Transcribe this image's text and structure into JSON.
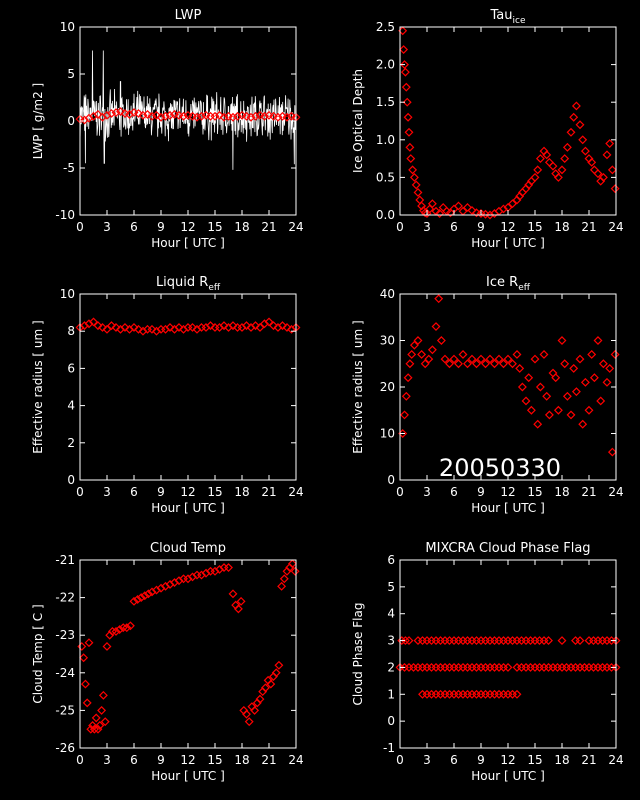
{
  "date_stamp": "20050330",
  "colors": {
    "background": "#000000",
    "axes": "#ffffff",
    "data": "#ff0000",
    "lwp_trace": "#ffffff"
  },
  "chart_data": [
    {
      "id": "lwp",
      "type": "line",
      "title": "LWP",
      "title_sub": "",
      "xlabel": "Hour [ UTC ]",
      "ylabel": "LWP [ g/m2 ]",
      "xlim": [
        0,
        24
      ],
      "ylim": [
        -10,
        10
      ],
      "xticks": [
        0,
        3,
        6,
        9,
        12,
        15,
        18,
        21,
        24
      ],
      "yticks": [
        -10,
        -5,
        0,
        5,
        10
      ],
      "series": [
        {
          "style": "noise-line",
          "color": "#ffffff",
          "x_range": [
            0,
            24
          ],
          "center": 0.5,
          "amplitude": 2.5,
          "spikes": [
            [
              1.4,
              7.5
            ],
            [
              2.6,
              7.5
            ],
            [
              2.7,
              -4.5
            ],
            [
              17.0,
              -5.2
            ],
            [
              23.8,
              -4.6
            ],
            [
              0.6,
              -4.5
            ],
            [
              4.5,
              4.2
            ]
          ]
        },
        {
          "style": "diamond",
          "color": "#ff0000",
          "x": [
            0.0,
            0.5,
            1.0,
            1.5,
            2.0,
            2.5,
            3.0,
            3.5,
            4.0,
            4.5,
            5.0,
            5.5,
            6.0,
            6.5,
            7.0,
            7.5,
            8.0,
            8.5,
            9.0,
            9.5,
            10.0,
            10.5,
            11.0,
            11.5,
            12.0,
            12.5,
            13.0,
            13.5,
            14.0,
            14.5,
            15.0,
            15.5,
            16.0,
            16.5,
            17.0,
            17.5,
            18.0,
            18.5,
            19.0,
            19.5,
            20.0,
            20.5,
            21.0,
            21.5,
            22.0,
            22.5,
            23.0,
            23.5,
            24.0
          ],
          "y": [
            0.2,
            0.1,
            0.3,
            0.5,
            0.7,
            0.4,
            0.6,
            0.8,
            0.9,
            1.0,
            0.8,
            0.7,
            0.9,
            0.8,
            0.6,
            0.7,
            0.5,
            0.6,
            0.4,
            0.5,
            0.6,
            0.7,
            0.6,
            0.5,
            0.6,
            0.5,
            0.4,
            0.5,
            0.6,
            0.5,
            0.5,
            0.6,
            0.4,
            0.5,
            0.4,
            0.5,
            0.6,
            0.5,
            0.4,
            0.5,
            0.6,
            0.5,
            0.6,
            0.5,
            0.4,
            0.5,
            0.4,
            0.5,
            0.4
          ]
        }
      ]
    },
    {
      "id": "tau_ice",
      "type": "scatter",
      "title": "Tau",
      "title_sub": "ice",
      "xlabel": "Hour [ UTC ]",
      "ylabel": "Ice Optical Depth",
      "xlim": [
        0,
        24
      ],
      "ylim": [
        0,
        2.5
      ],
      "xticks": [
        0,
        3,
        6,
        9,
        12,
        15,
        18,
        21,
        24
      ],
      "yticks": [
        0.0,
        0.5,
        1.0,
        1.5,
        2.0,
        2.5
      ],
      "ytick_labels": [
        "0.0",
        "0.5",
        "1.0",
        "1.5",
        "2.0",
        "2.5"
      ],
      "series": [
        {
          "style": "diamond",
          "color": "#ff0000",
          "x": [
            0.3,
            0.4,
            0.5,
            0.6,
            0.7,
            0.8,
            0.9,
            1.0,
            1.1,
            1.2,
            1.4,
            1.6,
            1.8,
            2.0,
            2.2,
            2.4,
            2.6,
            2.8,
            3.0,
            3.3,
            3.6,
            4.0,
            4.4,
            4.8,
            5.2,
            5.6,
            6.0,
            6.5,
            7.0,
            7.5,
            8.0,
            8.5,
            9.0,
            9.5,
            10.0,
            10.5,
            11.0,
            11.5,
            12.0,
            12.5,
            13.0,
            13.3,
            13.6,
            14.0,
            14.3,
            14.6,
            15.0,
            15.3,
            15.6,
            16.0,
            16.3,
            16.6,
            17.0,
            17.3,
            17.6,
            18.0,
            18.3,
            18.6,
            19.0,
            19.3,
            19.6,
            20.0,
            20.3,
            20.6,
            21.0,
            21.3,
            21.6,
            22.0,
            22.3,
            22.6,
            23.0,
            23.3,
            23.6,
            23.9
          ],
          "y": [
            2.45,
            2.2,
            2.0,
            1.9,
            1.7,
            1.5,
            1.3,
            1.1,
            0.9,
            0.75,
            0.6,
            0.5,
            0.4,
            0.3,
            0.2,
            0.12,
            0.06,
            0.03,
            0.02,
            0.08,
            0.15,
            0.05,
            0.02,
            0.1,
            0.05,
            0.03,
            0.08,
            0.12,
            0.05,
            0.1,
            0.06,
            0.03,
            0.02,
            0.01,
            0.0,
            0.02,
            0.05,
            0.08,
            0.1,
            0.15,
            0.2,
            0.25,
            0.3,
            0.35,
            0.4,
            0.45,
            0.5,
            0.6,
            0.75,
            0.85,
            0.8,
            0.7,
            0.65,
            0.55,
            0.5,
            0.6,
            0.75,
            0.9,
            1.1,
            1.3,
            1.45,
            1.2,
            1.0,
            0.85,
            0.75,
            0.7,
            0.6,
            0.55,
            0.45,
            0.5,
            0.8,
            0.95,
            0.6,
            0.35
          ]
        }
      ]
    },
    {
      "id": "liquid_reff",
      "type": "scatter",
      "title": "Liquid R",
      "title_sub": "eff",
      "xlabel": "Hour [ UTC ]",
      "ylabel": "Effective radius [ um ]",
      "xlim": [
        0,
        24
      ],
      "ylim": [
        0,
        10
      ],
      "xticks": [
        0,
        3,
        6,
        9,
        12,
        15,
        18,
        21,
        24
      ],
      "yticks": [
        0,
        2,
        4,
        6,
        8,
        10
      ],
      "series": [
        {
          "style": "diamond",
          "color": "#ff0000",
          "x": [
            0.0,
            0.5,
            1.0,
            1.5,
            2.0,
            2.5,
            3.0,
            3.5,
            4.0,
            4.5,
            5.0,
            5.5,
            6.0,
            6.5,
            7.0,
            7.5,
            8.0,
            8.5,
            9.0,
            9.5,
            10.0,
            10.5,
            11.0,
            11.5,
            12.0,
            12.5,
            13.0,
            13.5,
            14.0,
            14.5,
            15.0,
            15.5,
            16.0,
            16.5,
            17.0,
            17.5,
            18.0,
            18.5,
            19.0,
            19.5,
            20.0,
            20.5,
            21.0,
            21.5,
            22.0,
            22.5,
            23.0,
            23.5,
            24.0
          ],
          "y": [
            8.2,
            8.3,
            8.4,
            8.5,
            8.3,
            8.2,
            8.1,
            8.3,
            8.2,
            8.1,
            8.2,
            8.1,
            8.2,
            8.1,
            8.0,
            8.1,
            8.1,
            8.0,
            8.1,
            8.1,
            8.2,
            8.1,
            8.2,
            8.1,
            8.2,
            8.2,
            8.1,
            8.2,
            8.2,
            8.3,
            8.2,
            8.2,
            8.3,
            8.2,
            8.3,
            8.2,
            8.2,
            8.3,
            8.2,
            8.3,
            8.2,
            8.4,
            8.5,
            8.3,
            8.2,
            8.3,
            8.2,
            8.1,
            8.2
          ]
        }
      ]
    },
    {
      "id": "ice_reff",
      "type": "scatter",
      "title": "Ice R",
      "title_sub": "eff",
      "xlabel": "Hour [ UTC ]",
      "ylabel": "Effective radius [ um ]",
      "xlim": [
        0,
        24
      ],
      "ylim": [
        0,
        40
      ],
      "xticks": [
        0,
        3,
        6,
        9,
        12,
        15,
        18,
        21,
        24
      ],
      "yticks": [
        0,
        10,
        20,
        30,
        40
      ],
      "series": [
        {
          "style": "diamond",
          "color": "#ff0000",
          "x": [
            0.3,
            0.5,
            0.7,
            0.9,
            1.1,
            1.3,
            1.6,
            2.0,
            2.4,
            2.8,
            3.2,
            3.6,
            4.0,
            4.3,
            4.6,
            5.0,
            5.5,
            6.0,
            6.5,
            7.0,
            7.5,
            8.0,
            8.5,
            9.0,
            9.5,
            10.0,
            10.5,
            11.0,
            11.5,
            12.0,
            12.5,
            13.0,
            13.3,
            13.6,
            14.0,
            14.3,
            14.6,
            15.0,
            15.3,
            15.6,
            16.0,
            16.3,
            16.6,
            17.0,
            17.3,
            17.6,
            18.0,
            18.3,
            18.6,
            19.0,
            19.3,
            19.6,
            20.0,
            20.3,
            20.6,
            21.0,
            21.3,
            21.6,
            22.0,
            22.3,
            22.6,
            23.0,
            23.3,
            23.6,
            23.9
          ],
          "y": [
            10,
            14,
            18,
            22,
            25,
            27,
            29,
            30,
            27,
            25,
            26,
            28,
            33,
            39,
            30,
            26,
            25,
            26,
            25,
            27,
            25,
            26,
            25,
            26,
            25,
            26,
            25,
            26,
            25,
            26,
            25,
            27,
            24,
            20,
            17,
            22,
            15,
            26,
            12,
            20,
            27,
            18,
            14,
            23,
            22,
            15,
            30,
            25,
            18,
            14,
            24,
            19,
            26,
            12,
            21,
            15,
            27,
            22,
            30,
            17,
            25,
            21,
            24,
            6,
            27
          ]
        }
      ]
    },
    {
      "id": "cloud_temp",
      "type": "scatter",
      "title": "Cloud Temp",
      "title_sub": "",
      "xlabel": "Hour [ UTC ]",
      "ylabel": "Cloud Temp [ C ]",
      "xlim": [
        0,
        24
      ],
      "ylim": [
        -26,
        -21
      ],
      "xticks": [
        0,
        3,
        6,
        9,
        12,
        15,
        18,
        21,
        24
      ],
      "yticks": [
        -26,
        -25,
        -24,
        -23,
        -22,
        -21
      ],
      "series": [
        {
          "style": "diamond",
          "color": "#ff0000",
          "x": [
            0.2,
            0.4,
            0.6,
            0.8,
            1.0,
            1.2,
            1.4,
            1.6,
            1.8,
            2.0,
            2.2,
            2.4,
            2.6,
            2.8,
            3.0,
            3.3,
            3.6,
            4.0,
            4.4,
            4.8,
            5.2,
            5.6,
            6.0,
            6.4,
            6.8,
            7.2,
            7.6,
            8.0,
            8.5,
            9.0,
            9.5,
            10.0,
            10.5,
            11.0,
            11.5,
            12.0,
            12.5,
            13.0,
            13.5,
            14.0,
            14.5,
            15.0,
            15.5,
            16.0,
            16.5,
            17.0,
            17.3,
            17.6,
            17.9,
            18.2,
            18.5,
            18.8,
            19.1,
            19.4,
            19.7,
            20.0,
            20.3,
            20.6,
            20.9,
            21.2,
            21.5,
            21.8,
            22.1,
            22.4,
            22.7,
            23.0,
            23.3,
            23.6,
            23.9
          ],
          "y": [
            -23.3,
            -23.6,
            -24.3,
            -24.8,
            -23.2,
            -25.5,
            -25.4,
            -25.5,
            -25.2,
            -25.5,
            -25.4,
            -25.0,
            -24.6,
            -25.3,
            -23.3,
            -23.0,
            -22.9,
            -22.9,
            -22.85,
            -22.8,
            -22.8,
            -22.75,
            -22.1,
            -22.05,
            -22.0,
            -21.95,
            -21.9,
            -21.85,
            -21.8,
            -21.75,
            -21.7,
            -21.65,
            -21.6,
            -21.55,
            -21.5,
            -21.5,
            -21.45,
            -21.4,
            -21.4,
            -21.35,
            -21.3,
            -21.3,
            -21.25,
            -21.2,
            -21.2,
            -21.9,
            -22.2,
            -22.3,
            -22.1,
            -25.0,
            -25.1,
            -25.3,
            -24.9,
            -25.0,
            -24.8,
            -24.7,
            -24.5,
            -24.4,
            -24.2,
            -24.3,
            -24.1,
            -24.0,
            -23.8,
            -21.7,
            -21.5,
            -21.3,
            -21.2,
            -21.1,
            -21.3
          ]
        }
      ]
    },
    {
      "id": "phase_flag",
      "type": "scatter",
      "title": "MIXCRA Cloud Phase Flag",
      "title_sub": "",
      "xlabel": "Hour [ UTC ]",
      "ylabel": "Cloud Phase Flag",
      "xlim": [
        0,
        24
      ],
      "ylim": [
        -1,
        6
      ],
      "xticks": [
        0,
        3,
        6,
        9,
        12,
        15,
        18,
        21,
        24
      ],
      "yticks": [
        -1,
        0,
        1,
        2,
        3,
        4,
        5,
        6
      ],
      "series": [
        {
          "style": "diamond",
          "color": "#ff0000",
          "x": [
            0.2,
            0.6,
            1.0,
            2.0,
            2.5,
            3.0,
            3.5,
            4.0,
            4.5,
            5.0,
            5.5,
            6.0,
            6.5,
            7.0,
            7.5,
            8.0,
            8.5,
            9.0,
            9.5,
            10.0,
            10.5,
            11.0,
            11.5,
            12.0,
            12.5,
            13.0,
            13.5,
            14.0,
            14.5,
            15.0,
            15.5,
            16.0,
            16.5,
            18.0,
            19.5,
            20.0,
            21.0,
            21.5,
            22.0,
            22.5,
            23.0,
            23.5,
            24.0
          ],
          "y": [
            3,
            3,
            3,
            3,
            3,
            3,
            3,
            3,
            3,
            3,
            3,
            3,
            3,
            3,
            3,
            3,
            3,
            3,
            3,
            3,
            3,
            3,
            3,
            3,
            3,
            3,
            3,
            3,
            3,
            3,
            3,
            3,
            3,
            3,
            3,
            3,
            3,
            3,
            3,
            3,
            3,
            3,
            3
          ]
        },
        {
          "style": "diamond",
          "color": "#ff0000",
          "x": [
            0.0,
            0.5,
            1.0,
            1.5,
            2.0,
            2.5,
            3.0,
            3.5,
            4.0,
            4.5,
            5.0,
            5.5,
            6.0,
            6.5,
            7.0,
            7.5,
            8.0,
            8.5,
            9.0,
            9.5,
            10.0,
            10.5,
            11.0,
            11.5,
            12.0,
            13.0,
            13.5,
            14.0,
            14.5,
            15.0,
            15.5,
            16.0,
            16.5,
            17.0,
            17.5,
            18.0,
            18.5,
            19.0,
            19.5,
            20.0,
            20.5,
            21.0,
            21.5,
            22.0,
            22.5,
            23.0,
            23.5,
            24.0
          ],
          "y": [
            2,
            2,
            2,
            2,
            2,
            2,
            2,
            2,
            2,
            2,
            2,
            2,
            2,
            2,
            2,
            2,
            2,
            2,
            2,
            2,
            2,
            2,
            2,
            2,
            2,
            2,
            2,
            2,
            2,
            2,
            2,
            2,
            2,
            2,
            2,
            2,
            2,
            2,
            2,
            2,
            2,
            2,
            2,
            2,
            2,
            2,
            2,
            2
          ]
        },
        {
          "style": "diamond",
          "color": "#ff0000",
          "x": [
            2.5,
            3.0,
            3.5,
            4.0,
            4.5,
            5.0,
            5.5,
            6.0,
            6.5,
            7.0,
            7.5,
            8.0,
            8.5,
            9.0,
            9.5,
            10.0,
            10.5,
            11.0,
            11.5,
            12.0,
            12.5,
            13.0
          ],
          "y": [
            1,
            1,
            1,
            1,
            1,
            1,
            1,
            1,
            1,
            1,
            1,
            1,
            1,
            1,
            1,
            1,
            1,
            1,
            1,
            1,
            1,
            1
          ]
        }
      ]
    }
  ]
}
